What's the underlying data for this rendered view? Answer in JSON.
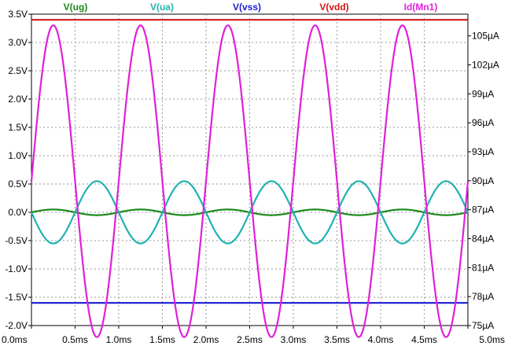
{
  "chart_data": {
    "type": "line",
    "x_ticks": [
      "0.0ms",
      "0.5ms",
      "1.0ms",
      "1.5ms",
      "2.0ms",
      "2.5ms",
      "3.0ms",
      "3.5ms",
      "4.0ms",
      "4.5ms",
      "5.0ms"
    ],
    "xlim": [
      0,
      5
    ],
    "y_left_ticks": [
      "3.5V",
      "3.0V",
      "2.5V",
      "2.0V",
      "1.5V",
      "1.0V",
      "0.5V",
      "0.0V",
      "-0.5V",
      "-1.0V",
      "-1.5V",
      "-2.0V"
    ],
    "ylim_left": [
      -2.0,
      3.5
    ],
    "y_right_ticks": [
      "105µA",
      "102µA",
      "99µA",
      "96µA",
      "93µA",
      "90µA",
      "87µA",
      "84µA",
      "81µA",
      "78µA",
      "75µA"
    ],
    "ylim_right": [
      75,
      107.25
    ],
    "grid": true,
    "legend_position": "top",
    "series": [
      {
        "name": "V(ug)",
        "color": "#1a8a1a",
        "axis": "left",
        "kind": "sine",
        "offset": 0.0,
        "amplitude": 0.05,
        "freq_hz": 1000,
        "phase_deg": 0
      },
      {
        "name": "V(ua)",
        "color": "#20b2b2",
        "axis": "left",
        "kind": "sine",
        "offset": 0.0,
        "amplitude": 0.55,
        "freq_hz": 1000,
        "phase_deg": 180
      },
      {
        "name": "V(vss)",
        "color": "#1a1ad0",
        "axis": "left",
        "kind": "constant",
        "value": -1.6
      },
      {
        "name": "V(vdd)",
        "color": "#d01818",
        "axis": "left",
        "kind": "constant",
        "value": 3.4
      },
      {
        "name": "Id(Mn1)",
        "color": "#e020d8",
        "axis": "right",
        "kind": "sine",
        "offset": 89.95,
        "amplitude": 16.15,
        "freq_hz": 1000,
        "phase_deg": 0
      }
    ]
  }
}
